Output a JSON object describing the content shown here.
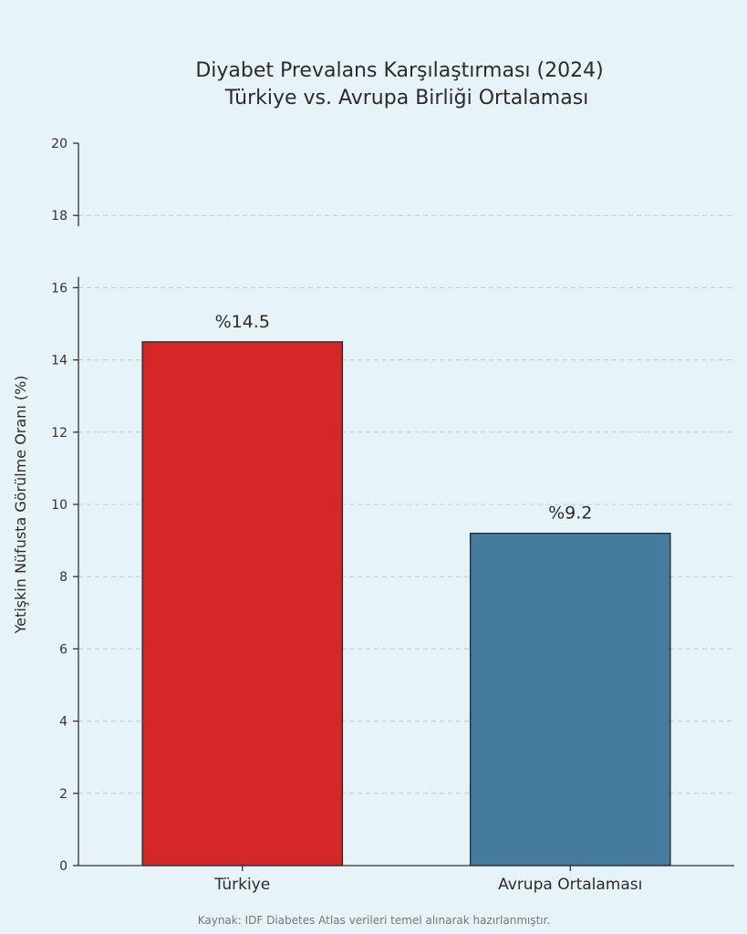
{
  "chart_data": {
    "type": "bar",
    "title_lines": [
      "Diyabet Prevalans Karşılaştırması (2024)",
      "Türkiye vs. Avrupa Birliği Ortalaması"
    ],
    "ylabel": "Yetişkin Nüfusta Görülme Oranı (%)",
    "xlabel": "",
    "categories": [
      "Türkiye",
      "Avrupa Ortalaması"
    ],
    "values": [
      14.5,
      9.2
    ],
    "data_labels": [
      "%14.5",
      "%9.2"
    ],
    "colors": [
      "#d62728",
      "#457b9d"
    ],
    "ylim": [
      0,
      20
    ],
    "yticks": [
      0,
      2,
      4,
      6,
      8,
      10,
      12,
      14,
      16,
      18,
      20
    ],
    "grid": true,
    "axis_break": [
      16.3,
      17.7
    ]
  },
  "footer": {
    "source": "Kaynak: IDF Diabetes Atlas verileri temel alınarak hazırlanmıştır."
  }
}
